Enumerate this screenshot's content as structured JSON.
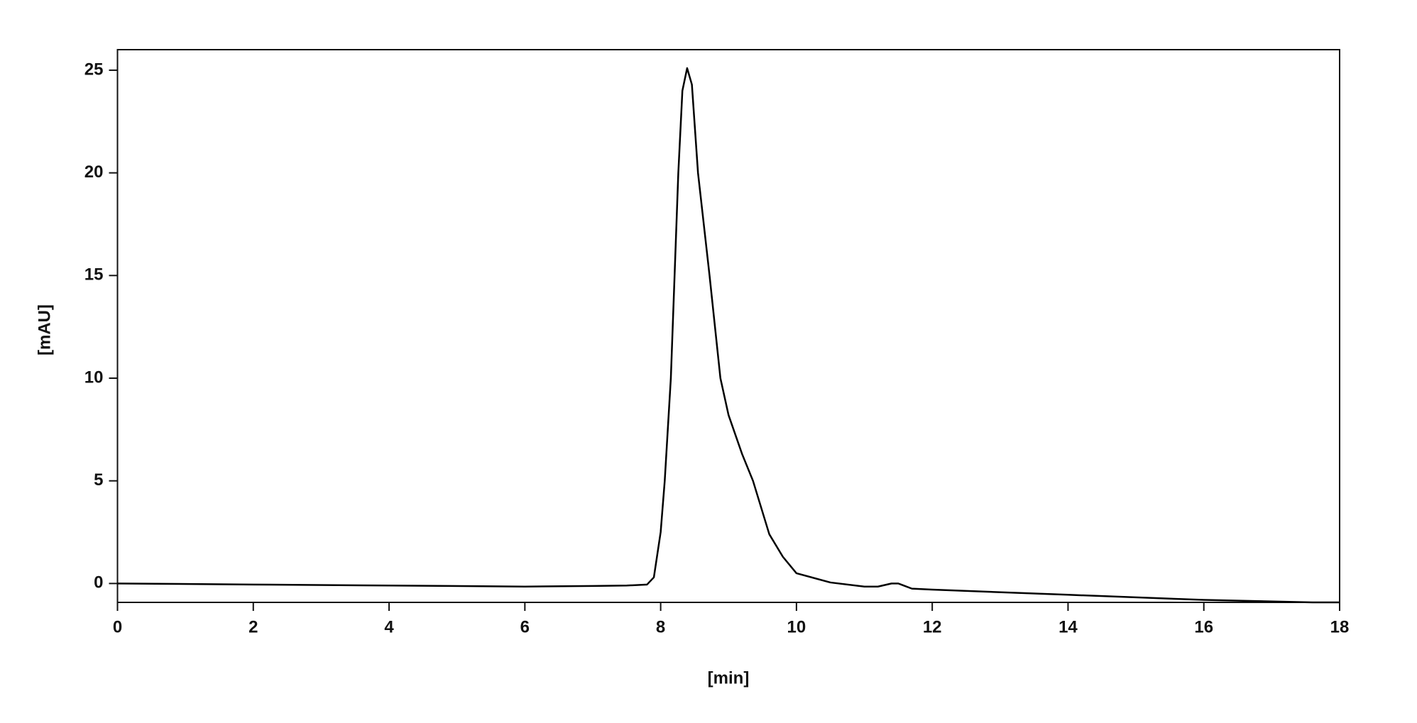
{
  "chart_data": {
    "type": "line",
    "x_label": "[min]",
    "y_label": "[mAU]",
    "x": [
      0,
      2,
      4,
      6,
      7,
      7.5,
      7.8,
      7.9,
      8.0,
      8.06,
      8.15,
      8.26,
      8.32,
      8.39,
      8.46,
      8.55,
      8.72,
      8.88,
      9.0,
      9.2,
      9.36,
      9.6,
      9.8,
      10.0,
      10.5,
      11.0,
      11.2,
      11.4,
      11.5,
      11.7,
      12,
      14,
      16,
      17.6,
      18
    ],
    "values": [
      0,
      -0.05,
      -0.1,
      -0.15,
      -0.12,
      -0.1,
      -0.05,
      0.3,
      2.5,
      5,
      10,
      20,
      24,
      25.1,
      24.3,
      20,
      15,
      10,
      8.2,
      6.3,
      5,
      2.4,
      1.3,
      0.5,
      0.05,
      -0.15,
      -0.15,
      0,
      0,
      -0.25,
      -0.3,
      -0.55,
      -0.8,
      -0.92,
      -0.92
    ],
    "color": "#000000",
    "xlim": [
      0,
      18
    ],
    "ylim": [
      -0.92,
      26
    ],
    "xticks": [
      0,
      2,
      4,
      6,
      8,
      10,
      12,
      14,
      16,
      18
    ],
    "yticks": [
      0,
      5,
      10,
      15,
      20,
      25
    ]
  }
}
